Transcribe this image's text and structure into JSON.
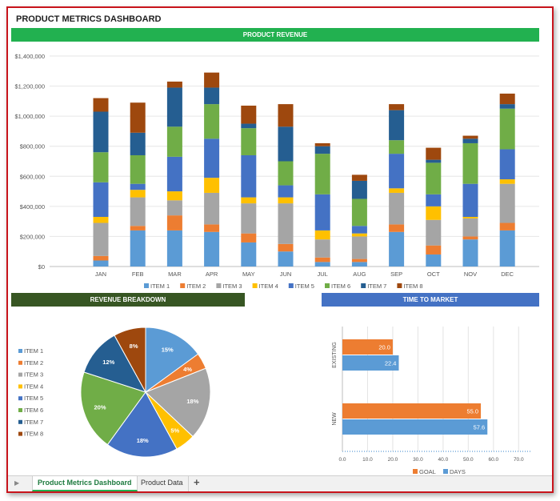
{
  "dashboard": {
    "title": "PRODUCT METRICS DASHBOARD"
  },
  "revenue": {
    "banner": "PRODUCT REVENUE"
  },
  "breakdown": {
    "banner": "REVENUE BREAKDOWN"
  },
  "ttm": {
    "banner": "TIME TO MARKET"
  },
  "tabs": {
    "play": "▶",
    "active": "Product Metrics Dashboard",
    "second": "Product Data",
    "add": "+"
  },
  "chart_data": [
    {
      "type": "bar",
      "stacked": true,
      "title": "PRODUCT REVENUE",
      "categories": [
        "JAN",
        "FEB",
        "MAR",
        "APR",
        "MAY",
        "JUN",
        "JUL",
        "AUG",
        "SEP",
        "OCT",
        "NOV",
        "DEC"
      ],
      "ylim": [
        0,
        1400000
      ],
      "yticks": [
        0,
        200000,
        400000,
        600000,
        800000,
        1000000,
        1200000,
        1400000
      ],
      "ytick_labels": [
        "$0",
        "$200,000",
        "$400,000",
        "$600,000",
        "$800,000",
        "$1,000,000",
        "$1,200,000",
        "$1,400,000"
      ],
      "grid": true,
      "legend": "bottom",
      "series": [
        {
          "name": "ITEM 1",
          "color": "#5b9bd5",
          "values": [
            40000,
            240000,
            240000,
            230000,
            160000,
            100000,
            30000,
            30000,
            230000,
            80000,
            180000,
            240000
          ]
        },
        {
          "name": "ITEM 2",
          "color": "#ed7d31",
          "values": [
            30000,
            30000,
            100000,
            50000,
            60000,
            50000,
            30000,
            20000,
            50000,
            60000,
            20000,
            50000
          ]
        },
        {
          "name": "ITEM 3",
          "color": "#a5a5a5",
          "values": [
            220000,
            190000,
            100000,
            210000,
            200000,
            270000,
            120000,
            150000,
            210000,
            170000,
            120000,
            260000
          ]
        },
        {
          "name": "ITEM 4",
          "color": "#ffc000",
          "values": [
            40000,
            50000,
            60000,
            100000,
            40000,
            40000,
            60000,
            20000,
            30000,
            90000,
            10000,
            30000
          ]
        },
        {
          "name": "ITEM 5",
          "color": "#4472c4",
          "values": [
            230000,
            40000,
            230000,
            260000,
            280000,
            80000,
            240000,
            50000,
            230000,
            80000,
            220000,
            200000
          ]
        },
        {
          "name": "ITEM 6",
          "color": "#70ad47",
          "values": [
            200000,
            190000,
            200000,
            230000,
            180000,
            160000,
            270000,
            180000,
            90000,
            210000,
            270000,
            270000
          ]
        },
        {
          "name": "ITEM 7",
          "color": "#255e91",
          "values": [
            270000,
            150000,
            260000,
            110000,
            30000,
            230000,
            50000,
            120000,
            200000,
            20000,
            30000,
            30000
          ]
        },
        {
          "name": "ITEM 8",
          "color": "#9e480e",
          "values": [
            90000,
            200000,
            40000,
            100000,
            120000,
            150000,
            20000,
            40000,
            40000,
            80000,
            20000,
            70000
          ]
        }
      ]
    },
    {
      "type": "pie",
      "title": "REVENUE BREAKDOWN",
      "legend": "left",
      "labels": [
        "ITEM 1",
        "ITEM 2",
        "ITEM 3",
        "ITEM 4",
        "ITEM 5",
        "ITEM 6",
        "ITEM 7",
        "ITEM 8"
      ],
      "values": [
        15,
        4,
        18,
        5,
        18,
        20,
        12,
        8
      ],
      "value_labels": [
        "15%",
        "4%",
        "18%",
        "5%",
        "18%",
        "20%",
        "12%",
        "8%"
      ],
      "colors": [
        "#5b9bd5",
        "#ed7d31",
        "#a5a5a5",
        "#ffc000",
        "#4472c4",
        "#70ad47",
        "#255e91",
        "#9e480e"
      ]
    },
    {
      "type": "bar",
      "orientation": "horizontal",
      "title": "TIME TO MARKET",
      "categories": [
        "EXISTING",
        "NEW"
      ],
      "xlim": [
        0,
        75
      ],
      "xticks": [
        0,
        10,
        20,
        30,
        40,
        50,
        60,
        70
      ],
      "xtick_labels": [
        "0.0",
        "10.0",
        "20.0",
        "30.0",
        "40.0",
        "50.0",
        "60.0",
        "70.0"
      ],
      "legend": "bottom",
      "series": [
        {
          "name": "GOAL",
          "color": "#ed7d31",
          "values": [
            20.0,
            55.0
          ],
          "value_labels": [
            "20.0",
            "55.0"
          ]
        },
        {
          "name": "DAYS",
          "color": "#5b9bd5",
          "values": [
            22.4,
            57.6
          ],
          "value_labels": [
            "22.4",
            "57.6"
          ]
        }
      ]
    }
  ]
}
